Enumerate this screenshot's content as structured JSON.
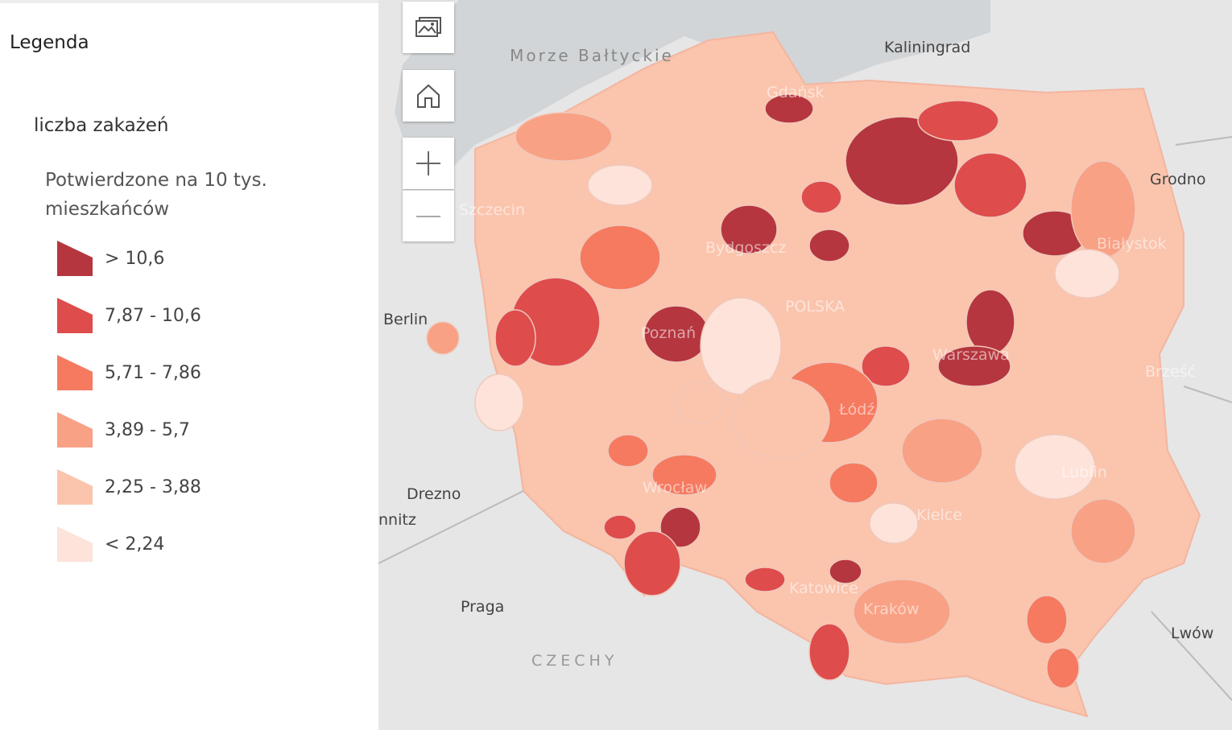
{
  "legend": {
    "title": "Legenda",
    "layer": "liczba zakażeń",
    "field": "Potwierdzone na 10 tys. mieszkańców",
    "classes": [
      {
        "label": "> 10,6",
        "color": "#b5363e"
      },
      {
        "label": "7,87 - 10,6",
        "color": "#de4c4c"
      },
      {
        "label": "5,71 - 7,86",
        "color": "#f57a60"
      },
      {
        "label": "3,89 - 5,7",
        "color": "#f8a185"
      },
      {
        "label": "2,25 - 3,88",
        "color": "#fbc4ad"
      },
      {
        "label": "< 2,24",
        "color": "#fde3da"
      }
    ]
  },
  "map": {
    "controls": {
      "basemap": "basemap-gallery-icon",
      "home": "home-icon",
      "zoom_in": "plus-icon",
      "zoom_out": "minus-icon"
    },
    "labels": {
      "sea": "Morze Bałtyckie",
      "kaliningrad": "Kaliningrad",
      "gdansk": "Gdańsk",
      "grodno": "Grodno",
      "szczecin": "Szczecin",
      "bialystok": "Białystok",
      "bydgoszcz": "Bydgoszcz",
      "berlin": "Berlin",
      "poznan": "Poznań",
      "polska": "POLSKA",
      "warszawa": "Warszawa",
      "brzesc": "Brześć",
      "lodz": "Łódź",
      "drezno": "Drezno",
      "chemnitz": "nnitz",
      "wroclaw": "Wrocław",
      "lublin": "Lublin",
      "kielce": "Kielce",
      "praga": "Praga",
      "katowice": "Katowice",
      "krakow": "Kraków",
      "lwow": "Lwów",
      "czechy": "CZECHY"
    },
    "colors": {
      "sea": "#d2d5d7",
      "land": "#e6e6e6",
      "border": "#ffffff"
    }
  }
}
